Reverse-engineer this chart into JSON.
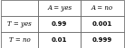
{
  "col_headers": [
    "A = yes",
    "A = no"
  ],
  "row_headers": [
    "T = yes",
    "T = no"
  ],
  "values": [
    [
      "0.99",
      "0.001"
    ],
    [
      "0.01",
      "0.999"
    ]
  ],
  "background_color": "#ffffff",
  "cell_color": "#ffffff",
  "border_color": "#555555",
  "text_color": "#000000",
  "header_fontsize": 5.0,
  "value_fontsize": 5.0,
  "figsize": [
    1.38,
    0.54
  ],
  "dpi": 100
}
